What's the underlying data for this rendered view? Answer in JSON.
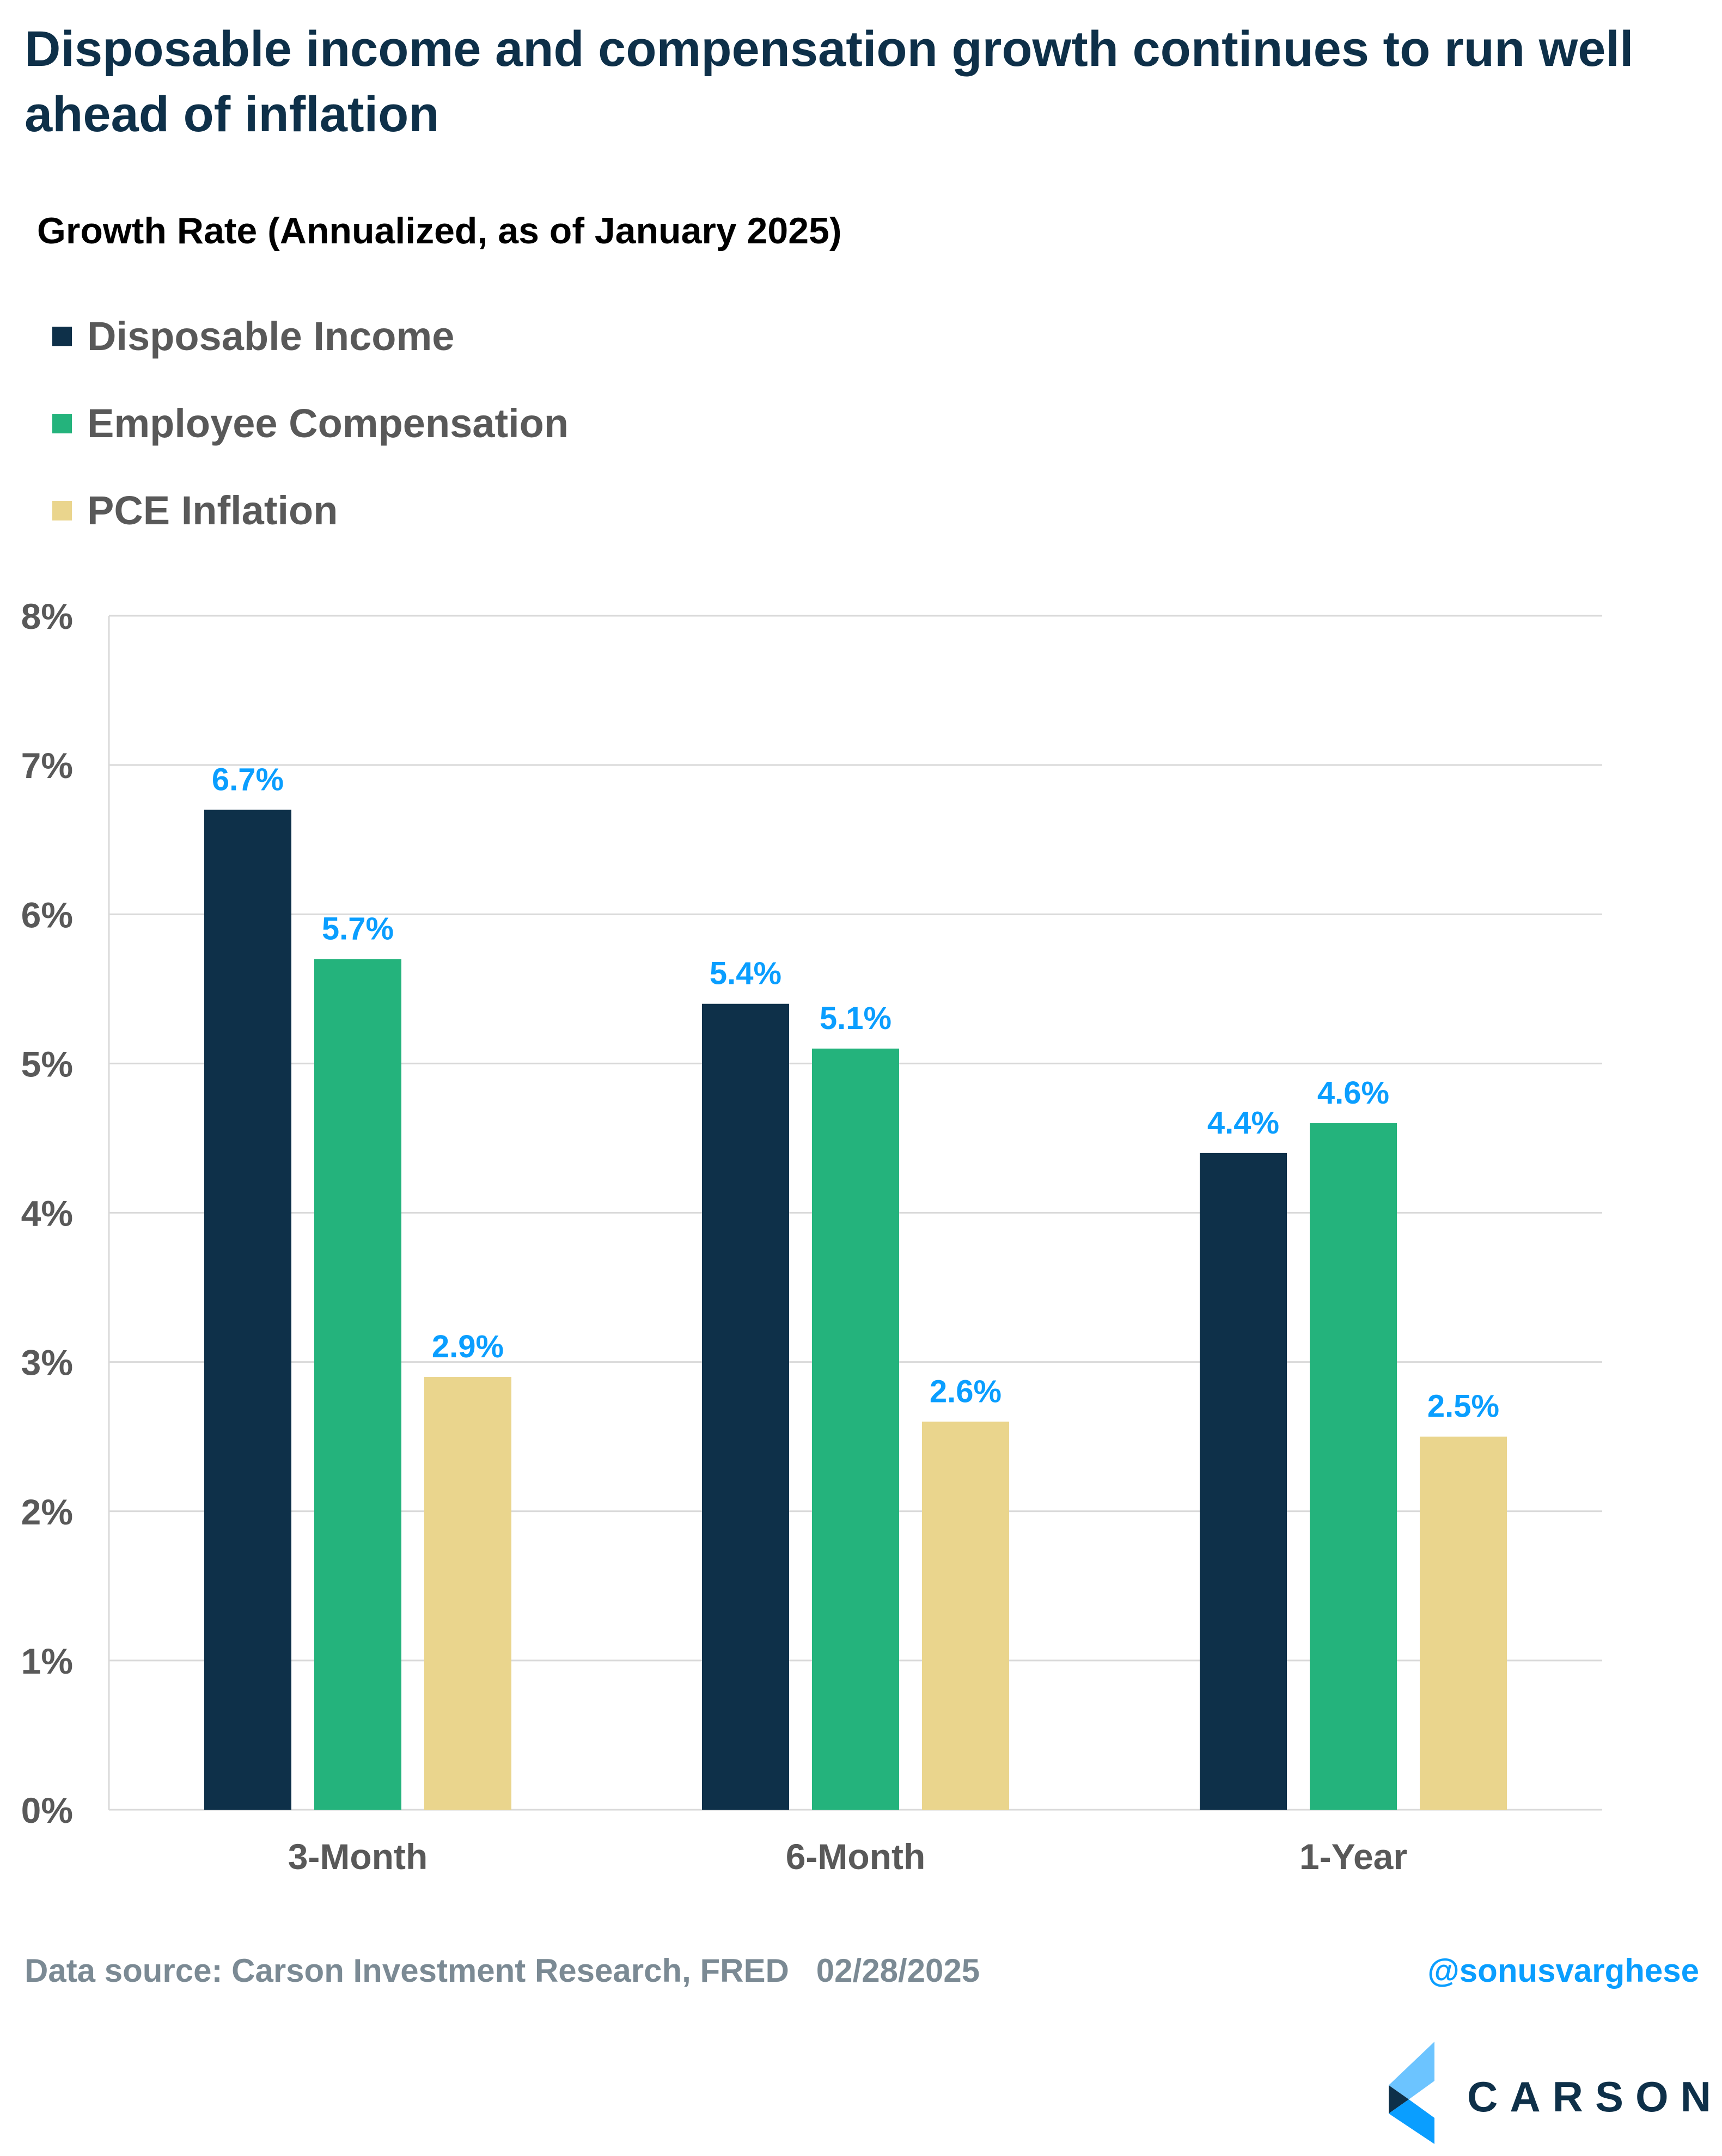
{
  "header": {
    "title": "Disposable income and compensation growth continues to run well ahead of inflation"
  },
  "chart_data": {
    "type": "bar",
    "title": "Growth Rate (Annualized, as of January 2025)",
    "categories": [
      "3-Month",
      "6-Month",
      "1-Year"
    ],
    "series": [
      {
        "name": "Disposable Income",
        "color": "#0e3049",
        "values": [
          6.7,
          5.4,
          4.4
        ],
        "labels": [
          "6.7%",
          "5.4%",
          "4.4%"
        ]
      },
      {
        "name": "Employee Compensation",
        "color": "#24b37c",
        "values": [
          5.7,
          5.1,
          4.6
        ],
        "labels": [
          "5.7%",
          "5.1%",
          "4.6%"
        ]
      },
      {
        "name": "PCE Inflation",
        "color": "#ead58d",
        "values": [
          2.9,
          2.6,
          2.5
        ],
        "labels": [
          "2.9%",
          "2.6%",
          "2.5%"
        ]
      }
    ],
    "ylim": [
      0,
      8
    ],
    "yticks": [
      "0%",
      "1%",
      "2%",
      "3%",
      "4%",
      "5%",
      "6%",
      "7%",
      "8%"
    ],
    "grid": true,
    "legend_position": "top-left",
    "data_label_color": "#0a9eff"
  },
  "footer": {
    "source": "Data source: Carson Investment Research, FRED   02/28/2025",
    "handle": "@sonusvarghese"
  },
  "logo": {
    "text": "CARSON"
  }
}
